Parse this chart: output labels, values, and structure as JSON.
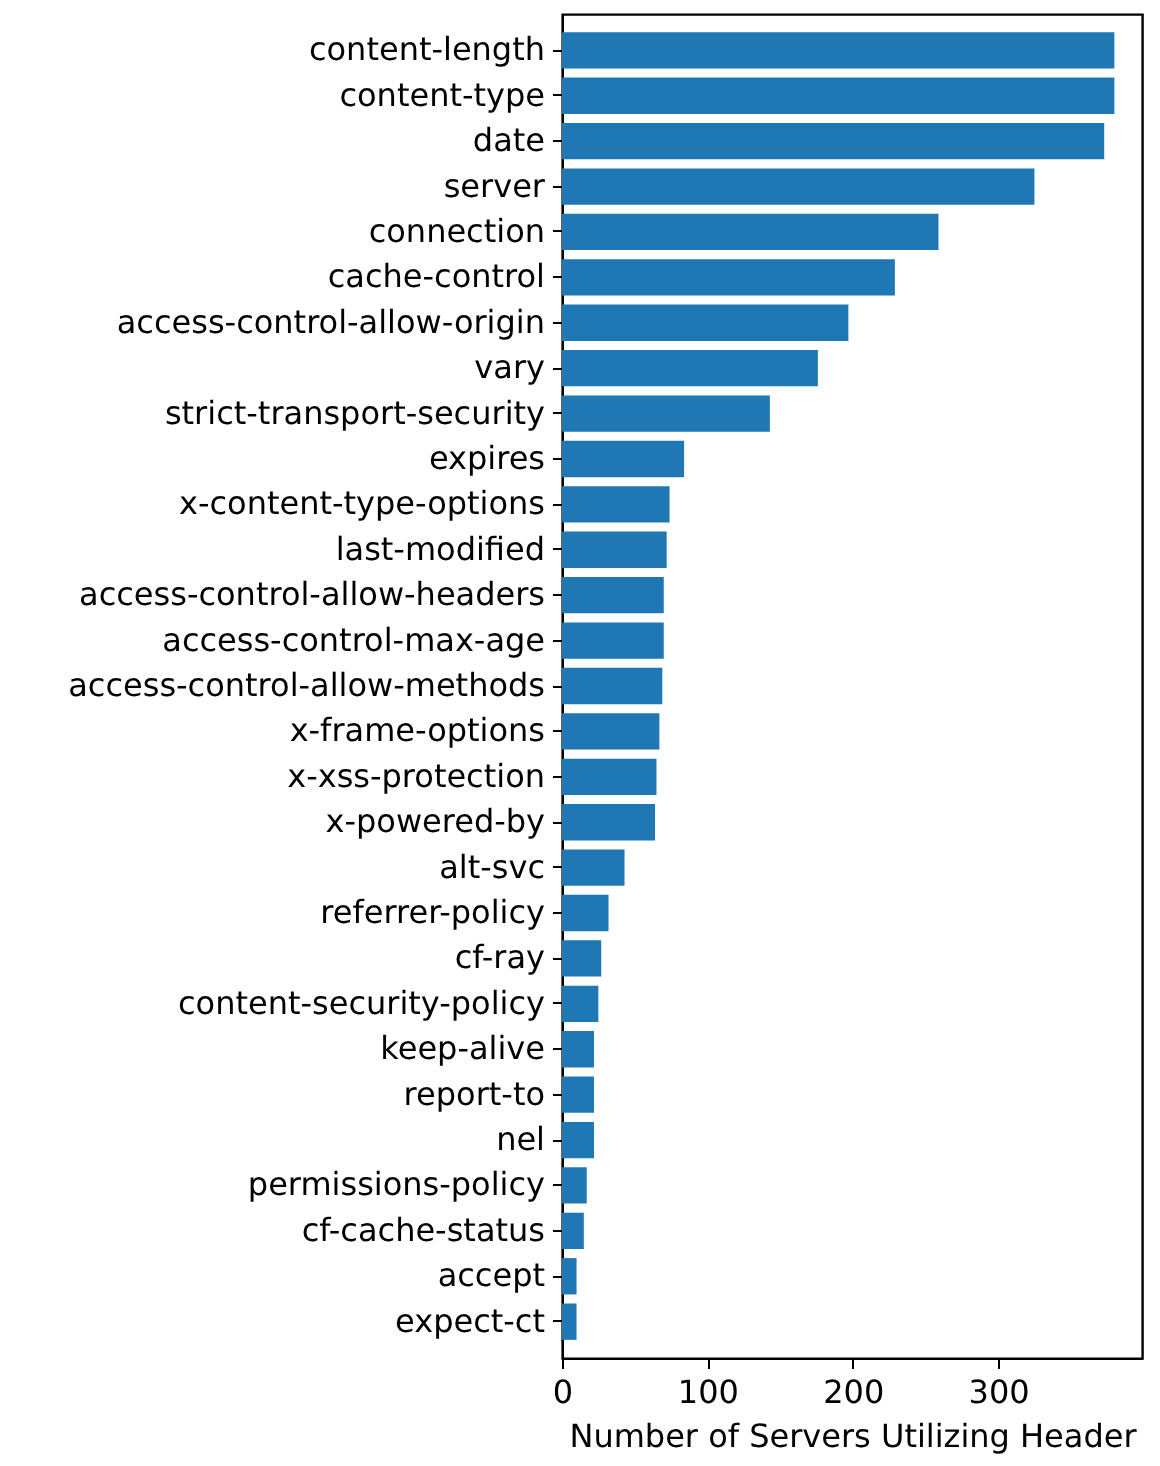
{
  "chart_data": {
    "type": "bar",
    "orientation": "horizontal",
    "xlabel": "Number of Servers Utilizing Header",
    "categories": [
      "content-length",
      "content-type",
      "date",
      "server",
      "connection",
      "cache-control",
      "access-control-allow-origin",
      "vary",
      "strict-transport-security",
      "expires",
      "x-content-type-options",
      "last-modified",
      "access-control-allow-headers",
      "access-control-max-age",
      "access-control-allow-methods",
      "x-frame-options",
      "x-xss-protection",
      "x-powered-by",
      "alt-svc",
      "referrer-policy",
      "cf-ray",
      "content-security-policy",
      "keep-alive",
      "report-to",
      "nel",
      "permissions-policy",
      "cf-cache-status",
      "accept",
      "expect-ct"
    ],
    "values": [
      380,
      380,
      373,
      325,
      259,
      229,
      197,
      176,
      143,
      84,
      74,
      72,
      70,
      70,
      69,
      67,
      65,
      64,
      43,
      32,
      27,
      25,
      22,
      22,
      22,
      17,
      15,
      10,
      10
    ],
    "color": "#1f77b4",
    "xlim": [
      0,
      399
    ],
    "xticks": [
      0,
      100,
      200,
      300
    ],
    "grid": false
  }
}
